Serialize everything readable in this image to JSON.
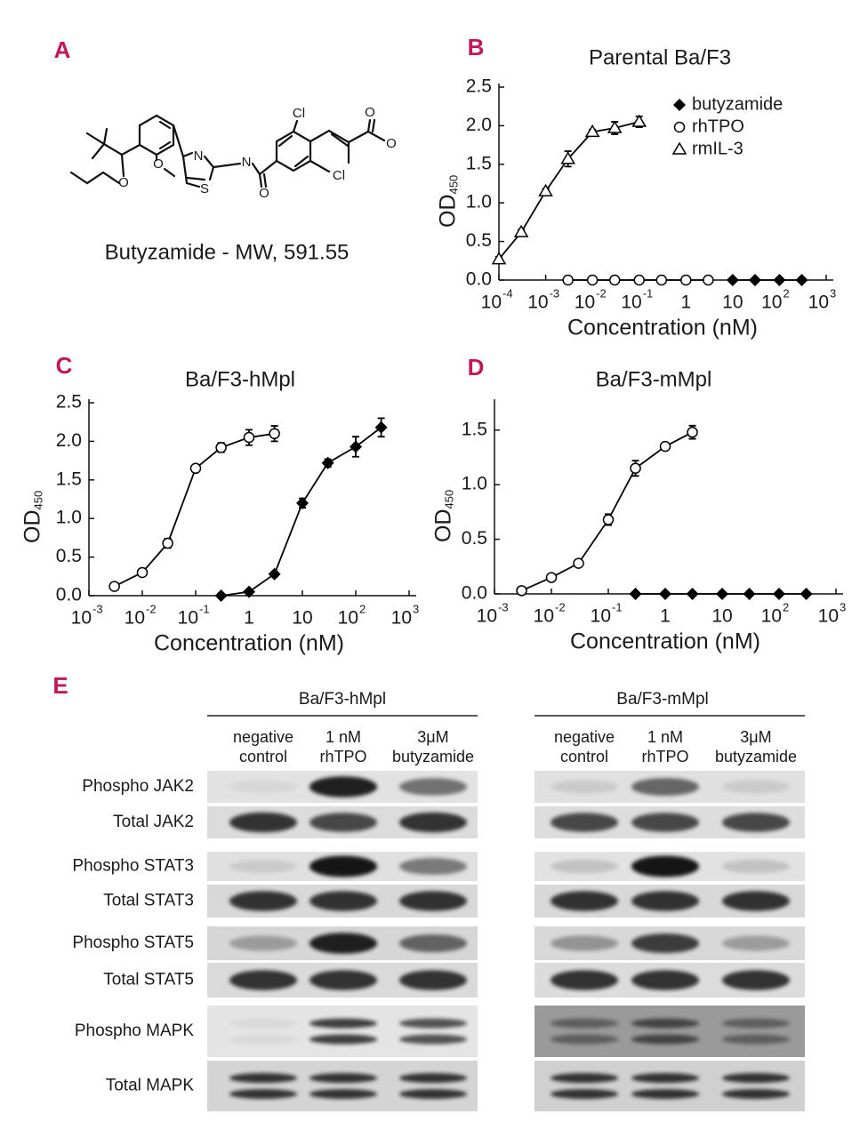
{
  "panels": {
    "labels": [
      "A",
      "B",
      "C",
      "D",
      "E"
    ]
  },
  "molecule": {
    "atoms": [
      "Cl",
      "O",
      "O",
      "Cl",
      "N",
      "O",
      "N",
      "S",
      "O",
      "O"
    ],
    "caption": "Butyzamide - MW, 591.55"
  },
  "chart_data": [
    {
      "type": "line",
      "title": "Parental Ba/F3",
      "xlabel": "Concentration (nM)",
      "ylabel": "OD",
      "ylabel_sub": "450",
      "log_x": true,
      "xlim": [
        0.0001,
        1000
      ],
      "ylim": [
        0,
        2.5
      ],
      "xticks": [
        {
          "value": 0.0001,
          "label": "10",
          "sup": "-4"
        },
        {
          "value": 0.001,
          "label": "10",
          "sup": "-3"
        },
        {
          "value": 0.01,
          "label": "10",
          "sup": "-2"
        },
        {
          "value": 0.1,
          "label": "10",
          "sup": "-1"
        },
        1,
        10,
        {
          "value": 100,
          "label": "10",
          "sup": "2"
        },
        {
          "value": 1000,
          "label": "10",
          "sup": "3"
        }
      ],
      "yticks": [
        {
          "value": 0,
          "label": "0.0"
        },
        0.5,
        {
          "value": 1,
          "label": "1.0"
        },
        1.5,
        {
          "value": 2,
          "label": "2.0"
        },
        2.5
      ],
      "legend": "upper right",
      "series": [
        {
          "name": "butyzamide",
          "color": "#000000",
          "marker": "diamond",
          "x": [
            10,
            30,
            100,
            300
          ],
          "values": [
            0,
            0,
            0,
            0
          ]
        },
        {
          "name": "rhTPO",
          "color": "#000000",
          "marker": "circle",
          "x": [
            0.003,
            0.01,
            0.03,
            0.1,
            0.3,
            1,
            3
          ],
          "values": [
            0,
            0,
            0,
            0,
            0,
            0,
            0
          ]
        },
        {
          "name": "rmIL-3",
          "color": "#000000",
          "marker": "triangle",
          "x": [
            0.0001,
            0.0003,
            0.001,
            0.003,
            0.01,
            0.03,
            0.1
          ],
          "values": [
            0.27,
            0.62,
            1.15,
            1.57,
            1.92,
            1.97,
            2.05
          ],
          "errors": [
            0.03,
            0.03,
            0.03,
            0.1,
            0.03,
            0.08,
            0.07
          ]
        }
      ]
    },
    {
      "type": "line",
      "title": "Ba/F3-hMpl",
      "xlabel": "Concentration (nM)",
      "ylabel": "OD",
      "ylabel_sub": "450",
      "log_x": true,
      "xlim": [
        0.001,
        1000
      ],
      "ylim": [
        0,
        2.5
      ],
      "xticks": [
        {
          "value": 0.001,
          "label": "10",
          "sup": "-3"
        },
        {
          "value": 0.01,
          "label": "10",
          "sup": "-2"
        },
        {
          "value": 0.1,
          "label": "10",
          "sup": "-1"
        },
        1,
        10,
        {
          "value": 100,
          "label": "10",
          "sup": "2"
        },
        {
          "value": 1000,
          "label": "10",
          "sup": "3"
        }
      ],
      "yticks": [
        {
          "value": 0,
          "label": "0.0"
        },
        0.5,
        {
          "value": 1,
          "label": "1.0"
        },
        1.5,
        {
          "value": 2,
          "label": "2.0"
        },
        2.5
      ],
      "series": [
        {
          "color": "#000000",
          "marker": "circle",
          "x": [
            0.003,
            0.01,
            0.03,
            0.1,
            0.3,
            1,
            3
          ],
          "values": [
            0.12,
            0.3,
            0.68,
            1.65,
            1.92,
            2.05,
            2.1
          ],
          "errors": [
            0.02,
            0.02,
            0.06,
            0.03,
            0.06,
            0.1,
            0.1
          ]
        },
        {
          "color": "#000000",
          "marker": "diamond",
          "x": [
            0.3,
            1,
            3,
            10,
            30,
            100,
            300
          ],
          "values": [
            0,
            0.05,
            0.28,
            1.2,
            1.72,
            1.93,
            2.18
          ],
          "errors": [
            0,
            0.02,
            0.03,
            0.06,
            0.05,
            0.13,
            0.12
          ]
        }
      ]
    },
    {
      "type": "line",
      "title": "Ba/F3-mMpl",
      "xlabel": "Concentration (nM)",
      "ylabel": "OD",
      "ylabel_sub": "450",
      "log_x": true,
      "xlim": [
        0.001,
        1000
      ],
      "ylim": [
        0,
        1.75
      ],
      "xticks": [
        {
          "value": 0.001,
          "label": "10",
          "sup": "-3"
        },
        {
          "value": 0.01,
          "label": "10",
          "sup": "-2"
        },
        {
          "value": 0.1,
          "label": "10",
          "sup": "-1"
        },
        1,
        10,
        {
          "value": 100,
          "label": "10",
          "sup": "2"
        },
        {
          "value": 1000,
          "label": "10",
          "sup": "3"
        }
      ],
      "yticks": [
        {
          "value": 0,
          "label": "0.0"
        },
        0.5,
        {
          "value": 1,
          "label": "1.0"
        },
        1.5
      ],
      "series": [
        {
          "color": "#000000",
          "marker": "circle",
          "x": [
            0.003,
            0.01,
            0.03,
            0.1,
            0.3,
            1,
            3
          ],
          "values": [
            0.03,
            0.15,
            0.28,
            0.68,
            1.15,
            1.35,
            1.48
          ],
          "errors": [
            0.01,
            0.01,
            0.02,
            0.05,
            0.07,
            0.03,
            0.06
          ]
        },
        {
          "color": "#000000",
          "marker": "diamond",
          "x": [
            0.3,
            1,
            3,
            10,
            30,
            100,
            300
          ],
          "values": [
            0,
            0,
            0,
            0,
            0,
            0,
            0
          ]
        }
      ]
    }
  ],
  "blots": {
    "row_labels": [
      "Phospho JAK2",
      "Total JAK2",
      "Phospho STAT3",
      "Total STAT3",
      "Phospho STAT5",
      "Total STAT5",
      "Phospho MAPK",
      "Total MAPK"
    ],
    "groups": [
      {
        "title": "Ba/F3-hMpl",
        "lanes": [
          [
            "negative",
            "control"
          ],
          [
            "1 nM",
            "rhTPO"
          ],
          [
            "3μM",
            "butyzamide"
          ]
        ]
      },
      {
        "title": "Ba/F3-mMpl",
        "lanes": [
          [
            "negative",
            "control"
          ],
          [
            "1 nM",
            "rhTPO"
          ],
          [
            "3μM",
            "butyzamide"
          ]
        ]
      }
    ]
  }
}
